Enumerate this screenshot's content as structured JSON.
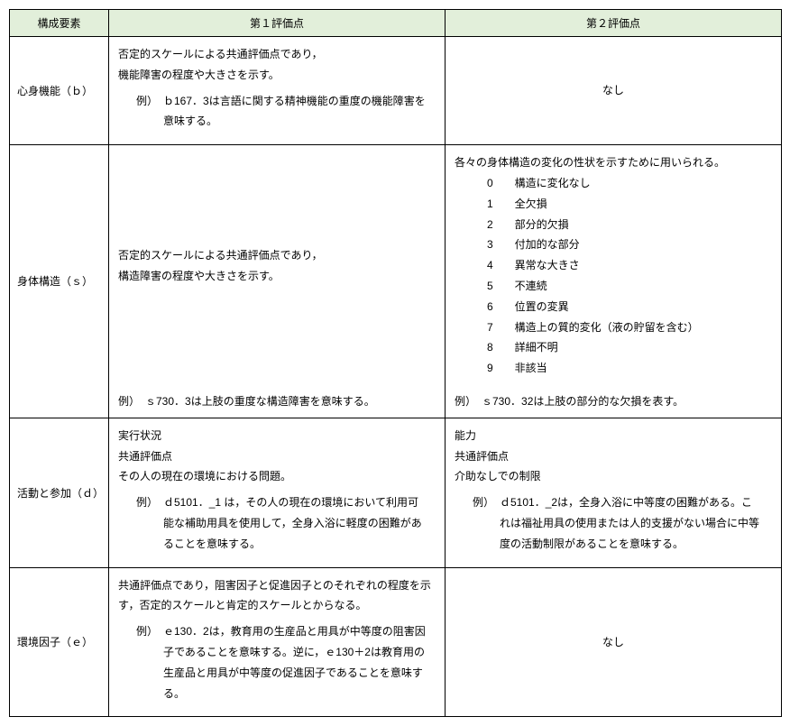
{
  "headers": {
    "component": "構成要素",
    "eval1": "第１評価点",
    "eval2": "第２評価点"
  },
  "rows": {
    "b": {
      "label": "心身機能（ｂ）",
      "eval1_line1": "否定的スケールによる共通評価点であり，",
      "eval1_line2": "機能障害の程度や大きさを示す。",
      "eval1_ex": "例）　ｂ167．3は言語に関する精神機能の重度の機能障害を意味する。",
      "eval2": "なし"
    },
    "s": {
      "label": "身体構造（ｓ）",
      "eval1_line1": "否定的スケールによる共通評価点であり，",
      "eval1_line2": "構造障害の程度や大きさを示す。",
      "eval1_ex": "例）　ｓ730．3は上肢の重度な構造障害を意味する。",
      "eval2_intro": "各々の身体構造の変化の性状を示すために用いられる。",
      "eval2_items": [
        "0　　構造に変化なし",
        "1　　全欠損",
        "2　　部分的欠損",
        "3　　付加的な部分",
        "4　　異常な大きさ",
        "5　　不連続",
        "6　　位置の変異",
        "7　　構造上の質的変化（液の貯留を含む）",
        "8　　詳細不明",
        "9　　非該当"
      ],
      "eval2_ex": "例）　ｓ730．32は上肢の部分的な欠損を表す。"
    },
    "d": {
      "label": "活動と参加（ｄ）",
      "eval1_line1": "実行状況",
      "eval1_line2": "共通評価点",
      "eval1_line3": "その人の現在の環境における問題。",
      "eval1_ex": "例）　ｄ5101．_1 は，その人の現在の環境において利用可能な補助用具を使用して，全身入浴に軽度の困難があることを意味する。",
      "eval2_line1": "能力",
      "eval2_line2": "共通評価点",
      "eval2_line3": "介助なしでの制限",
      "eval2_ex": "例）　ｄ5101．_2は，全身入浴に中等度の困難がある。これは福祉用具の使用または人的支援がない場合に中等度の活動制限があることを意味する。"
    },
    "e": {
      "label": "環境因子（ｅ）",
      "eval1_line1": "共通評価点であり，阻害因子と促進因子とのそれぞれの程度を示す，否定的スケールと肯定的スケールとからなる。",
      "eval1_ex": "例）　ｅ130．2は，教育用の生産品と用具が中等度の阻害因子であることを意味する。逆に，ｅ130＋2は教育用の生産品と用具が中等度の促進因子であることを意味する。",
      "eval2": "なし"
    }
  }
}
